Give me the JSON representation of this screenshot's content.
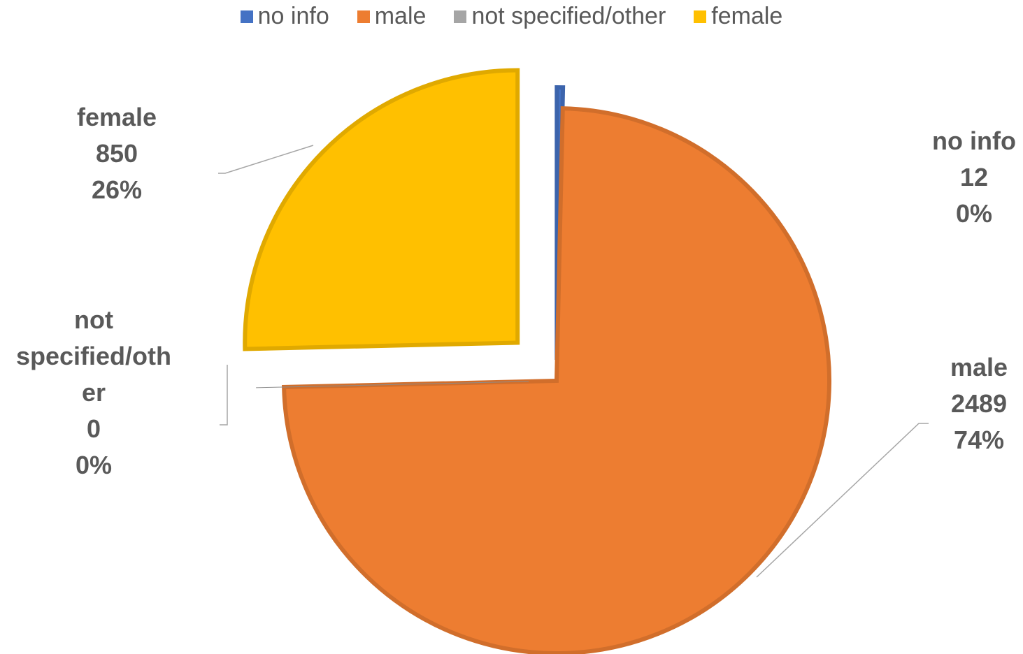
{
  "chart_data": {
    "type": "pie",
    "title": "",
    "legend_position": "top",
    "categories": [
      "no info",
      "male",
      "not specified/other",
      "female"
    ],
    "values": [
      12,
      2489,
      0,
      850
    ],
    "percent_labels": [
      "0%",
      "74%",
      "0%",
      "26%"
    ],
    "colors": [
      "#4472C4",
      "#ED7D31",
      "#A5A5A5",
      "#FFC000"
    ],
    "exploded": true,
    "legend": [
      {
        "label": "no info",
        "color": "#4472C4"
      },
      {
        "label": "male",
        "color": "#ED7D31"
      },
      {
        "label": "not specified/other",
        "color": "#A5A5A5"
      },
      {
        "label": "female",
        "color": "#FFC000"
      }
    ],
    "labels": [
      {
        "lines": [
          "no info",
          "12",
          "0%"
        ]
      },
      {
        "lines": [
          "male",
          "2489",
          "74%"
        ]
      },
      {
        "lines": [
          "not",
          "specified/oth",
          "er",
          "0",
          "0%"
        ]
      },
      {
        "lines": [
          "female",
          "850",
          "26%"
        ]
      }
    ]
  }
}
